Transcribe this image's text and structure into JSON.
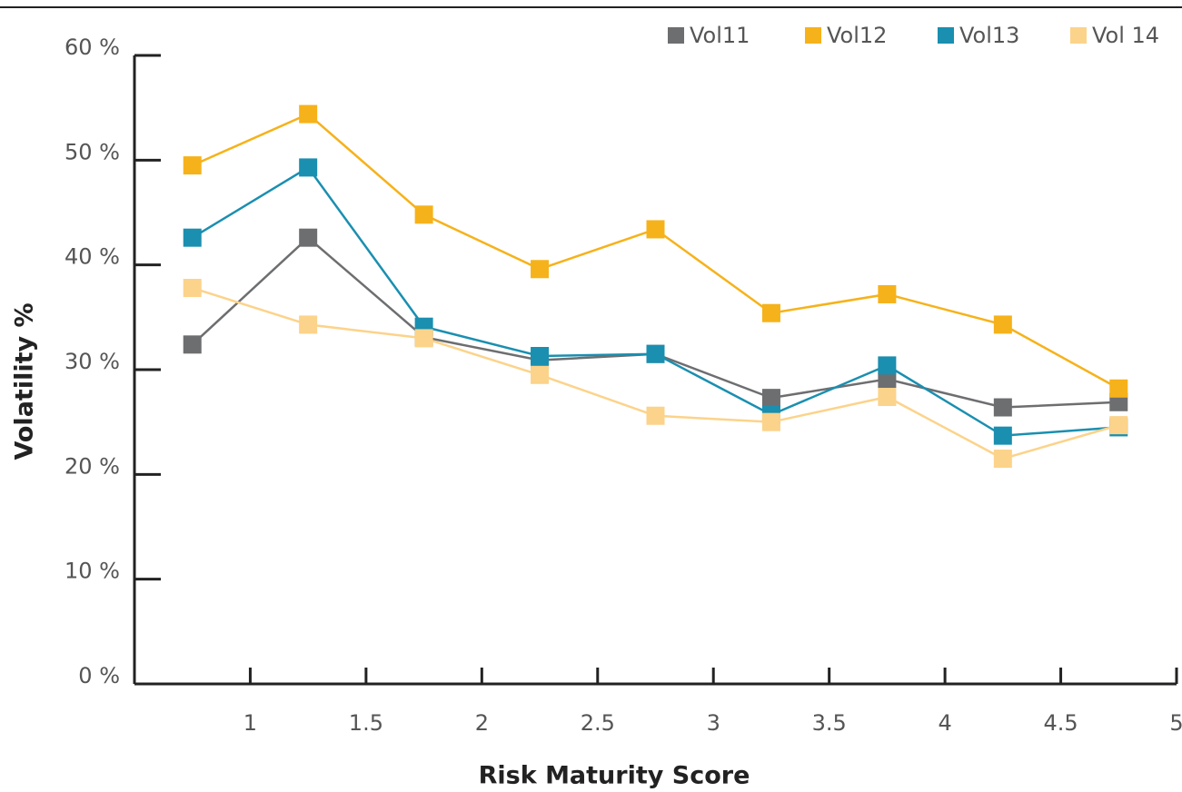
{
  "chart_data": {
    "type": "line",
    "x_label": "Risk Maturity Score",
    "y_label": "Volatility %",
    "x": [
      0.75,
      1.25,
      1.75,
      2.25,
      2.75,
      3.25,
      3.75,
      4.25,
      4.75
    ],
    "series": [
      {
        "name": "Vol11",
        "color": "#6d6e70",
        "values": [
          32.4,
          42.6,
          33.1,
          30.9,
          31.5,
          27.3,
          29.1,
          26.4,
          26.9
        ]
      },
      {
        "name": "Vol12",
        "color": "#f6b21a",
        "values": [
          49.5,
          54.4,
          44.8,
          39.6,
          43.4,
          35.4,
          37.2,
          34.3,
          28.2
        ]
      },
      {
        "name": "Vol13",
        "color": "#1a8fb0",
        "values": [
          42.6,
          49.3,
          34.1,
          31.3,
          31.5,
          25.7,
          30.4,
          23.7,
          24.5
        ]
      },
      {
        "name": "Vol 14",
        "color": "#fcd38a",
        "values": [
          37.8,
          34.3,
          33.0,
          29.5,
          25.6,
          25.0,
          27.4,
          21.5,
          24.7
        ]
      }
    ],
    "xlim": [
      0.5,
      5
    ],
    "xticks": [
      1,
      1.5,
      2,
      2.5,
      3,
      3.5,
      4,
      4.5,
      5
    ],
    "ylim": [
      0,
      60
    ],
    "yticks": [
      {
        "value": 0,
        "label": "0 %"
      },
      {
        "value": 10,
        "label": "10 %"
      },
      {
        "value": 20,
        "label": "20 %"
      },
      {
        "value": 30,
        "label": "30 %"
      },
      {
        "value": 40,
        "label": "40 %"
      },
      {
        "value": 50,
        "label": "50 %"
      },
      {
        "value": 60,
        "label": "60 %"
      }
    ],
    "legend": "top-right"
  }
}
